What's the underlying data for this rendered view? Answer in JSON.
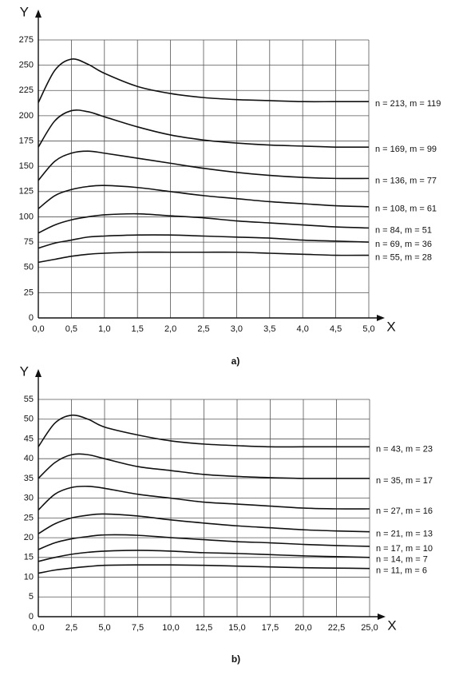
{
  "chart_data": [
    {
      "type": "line",
      "caption": "a)",
      "x_label": "X",
      "y_label": "Y",
      "grid": true,
      "x": [
        0,
        0.25,
        0.5,
        0.75,
        1.0,
        1.5,
        2.0,
        2.5,
        3.0,
        3.5,
        4.0,
        4.5,
        5.0
      ],
      "xlim": [
        0,
        5
      ],
      "ylim": [
        0,
        275
      ],
      "xticks": [
        {
          "value": 0,
          "label": "0,0"
        },
        {
          "value": 0.5,
          "label": "0,5"
        },
        {
          "value": 1,
          "label": "1,0"
        },
        {
          "value": 1.5,
          "label": "1,5"
        },
        {
          "value": 2,
          "label": "2,0"
        },
        {
          "value": 2.5,
          "label": "2,5"
        },
        {
          "value": 3,
          "label": "3,0"
        },
        {
          "value": 3.5,
          "label": "3,5"
        },
        {
          "value": 4,
          "label": "4,0"
        },
        {
          "value": 4.5,
          "label": "4,5"
        },
        {
          "value": 5,
          "label": "5,0"
        }
      ],
      "yticks": [
        0,
        25,
        50,
        75,
        100,
        125,
        150,
        175,
        200,
        225,
        250,
        275
      ],
      "series": [
        {
          "name": "n = 213, m = 119",
          "color": "#111111",
          "values": [
            213,
            245,
            256,
            251,
            242,
            229,
            222,
            218,
            216,
            215,
            214,
            214,
            214
          ]
        },
        {
          "name": "n = 169, m = 99",
          "color": "#111111",
          "values": [
            169,
            195,
            205,
            204,
            199,
            189,
            181,
            176,
            173,
            171,
            170,
            169,
            169
          ]
        },
        {
          "name": "n = 136, m = 77",
          "color": "#111111",
          "values": [
            136,
            155,
            163,
            165,
            163,
            158,
            153,
            148,
            144,
            141,
            139,
            138,
            138
          ]
        },
        {
          "name": "n = 108, m = 61",
          "color": "#111111",
          "values": [
            108,
            121,
            127,
            130,
            131,
            129,
            125,
            121,
            118,
            115,
            113,
            111,
            110
          ]
        },
        {
          "name": "n = 84, m = 51",
          "color": "#111111",
          "values": [
            84,
            92,
            97,
            100,
            102,
            103,
            101,
            99,
            96,
            94,
            92,
            90,
            89
          ]
        },
        {
          "name": "n = 69, m = 36",
          "color": "#111111",
          "values": [
            69,
            74,
            77,
            80,
            81,
            82,
            82,
            81,
            80,
            79,
            77,
            76,
            75
          ]
        },
        {
          "name": "n = 55, m = 28",
          "color": "#111111",
          "values": [
            55,
            58,
            61,
            63,
            64,
            65,
            65,
            65,
            65,
            64,
            63,
            62,
            62
          ]
        }
      ]
    },
    {
      "type": "line",
      "caption": "b)",
      "x_label": "X",
      "y_label": "Y",
      "grid": true,
      "x": [
        0,
        1.25,
        2.5,
        3.75,
        5,
        7.5,
        10,
        12.5,
        15,
        17.5,
        20,
        22.5,
        25
      ],
      "xlim": [
        0,
        25
      ],
      "ylim": [
        0,
        55
      ],
      "xticks": [
        {
          "value": 0,
          "label": "0,0"
        },
        {
          "value": 2.5,
          "label": "2,5"
        },
        {
          "value": 5,
          "label": "5,0"
        },
        {
          "value": 7.5,
          "label": "7,5"
        },
        {
          "value": 10,
          "label": "10,0"
        },
        {
          "value": 12.5,
          "label": "12,5"
        },
        {
          "value": 15,
          "label": "15,0"
        },
        {
          "value": 17.5,
          "label": "17,5"
        },
        {
          "value": 20,
          "label": "20,0"
        },
        {
          "value": 22.5,
          "label": "22,5"
        },
        {
          "value": 25,
          "label": "25,0"
        }
      ],
      "yticks": [
        0,
        5,
        10,
        15,
        20,
        25,
        30,
        35,
        40,
        45,
        50,
        55
      ],
      "series": [
        {
          "name": "n = 43, m = 23",
          "color": "#111111",
          "values": [
            43,
            49,
            51,
            50,
            48,
            46,
            44.5,
            43.7,
            43.3,
            43,
            43,
            43,
            43
          ]
        },
        {
          "name": "n = 35, m = 17",
          "color": "#111111",
          "values": [
            35,
            39,
            41,
            41,
            40,
            38,
            37,
            36,
            35.5,
            35.2,
            35,
            35,
            35
          ]
        },
        {
          "name": "n = 27, m = 16",
          "color": "#111111",
          "values": [
            27,
            31,
            32.7,
            33,
            32.5,
            31,
            30,
            29,
            28.5,
            28,
            27.5,
            27.3,
            27.3
          ]
        },
        {
          "name": "n = 21, m = 13",
          "color": "#111111",
          "values": [
            21,
            23.5,
            25,
            25.7,
            26,
            25.5,
            24.5,
            23.7,
            23,
            22.5,
            22,
            21.7,
            21.5
          ]
        },
        {
          "name": "n = 17, m = 10",
          "color": "#111111",
          "values": [
            17,
            18.7,
            19.7,
            20.3,
            20.7,
            20.6,
            20,
            19.5,
            19,
            18.7,
            18.3,
            18,
            17.8
          ]
        },
        {
          "name": "n = 14, m = 7",
          "color": "#111111",
          "values": [
            14,
            15,
            15.8,
            16.3,
            16.6,
            16.8,
            16.6,
            16.2,
            16,
            15.7,
            15.4,
            15.2,
            15
          ]
        },
        {
          "name": "n = 11, m = 6",
          "color": "#111111",
          "values": [
            11,
            11.8,
            12.3,
            12.7,
            13,
            13.1,
            13.1,
            13,
            12.8,
            12.6,
            12.4,
            12.3,
            12.2
          ]
        }
      ]
    }
  ]
}
